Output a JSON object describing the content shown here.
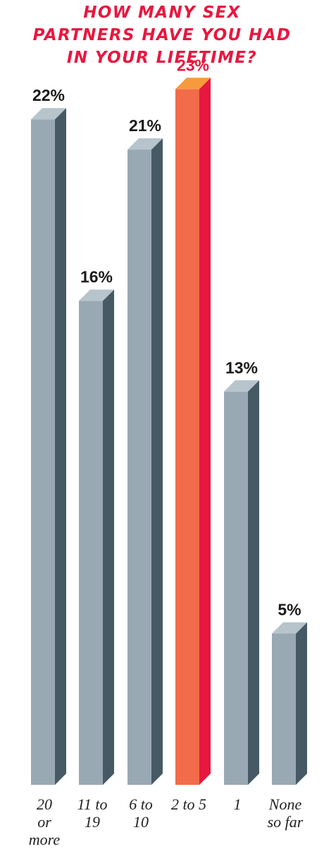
{
  "title_lines": [
    "HOW MANY SEX",
    "PARTNERS HAVE YOU HAD",
    "IN YOUR LIFETIME?"
  ],
  "colors": {
    "title": "#e8173f",
    "bar_front": "#99a9b4",
    "bar_side": "#465a66",
    "bar_top": "#b7c4cb",
    "highlight_front": "#f26b4b",
    "highlight_side": "#e8173f",
    "highlight_top": "#f79a3c",
    "highlight_label": "#e8173f",
    "label": "#1a1a1a"
  },
  "chart_data": {
    "type": "bar",
    "title": "HOW MANY SEX PARTNERS HAVE YOU HAD IN YOUR LIFETIME?",
    "categories": [
      "20 or more",
      "11 to 19",
      "6 to 10",
      "2 to 5",
      "1",
      "None so far"
    ],
    "category_label_lines": [
      [
        "20",
        "or",
        "more"
      ],
      [
        "11 to",
        "19"
      ],
      [
        "6 to",
        "10"
      ],
      [
        "2 to 5"
      ],
      [
        "1"
      ],
      [
        "None",
        "so far"
      ]
    ],
    "values": [
      22,
      16,
      21,
      23,
      13,
      5
    ],
    "value_labels": [
      "22%",
      "16%",
      "21%",
      "23%",
      "13%",
      "5%"
    ],
    "highlight_index": 3,
    "unit": "%",
    "ylim": [
      0,
      23
    ],
    "grid": false,
    "legend": "none"
  }
}
